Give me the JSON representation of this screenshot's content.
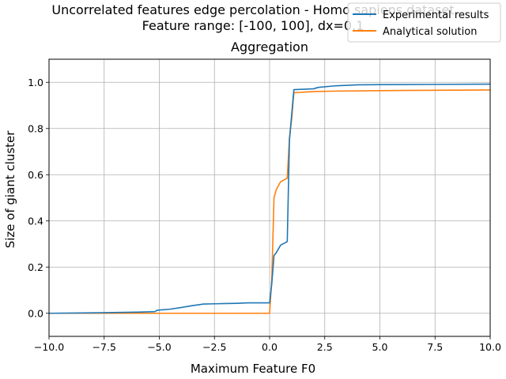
{
  "chart_data": {
    "type": "line",
    "title_line1": "Uncorrelated features edge percolation - Homo sapiens dataset",
    "title_line2": "Feature range: [-100, 100], dx=0.1",
    "subtitle": "Aggregation",
    "xlabel": "Maximum Feature F0",
    "ylabel": "Size of giant cluster",
    "xlim": [
      -10,
      10
    ],
    "ylim": [
      -0.1,
      1.1
    ],
    "xticks": [
      -10,
      -7.5,
      -5,
      -2.5,
      0,
      2.5,
      5,
      7.5,
      10
    ],
    "xtick_labels": [
      "−10.0",
      "−7.5",
      "−5.0",
      "−2.5",
      "0.0",
      "2.5",
      "5.0",
      "7.5",
      "10.0"
    ],
    "yticks": [
      0,
      0.2,
      0.4,
      0.6,
      0.8,
      1.0
    ],
    "ytick_labels": [
      "0.0",
      "0.2",
      "0.4",
      "0.6",
      "0.8",
      "1.0"
    ],
    "grid": true,
    "legend_position": "top-right",
    "series": [
      {
        "name": "Experimental results",
        "color": "#1f77b4",
        "x": [
          -10,
          -8,
          -6,
          -5.2,
          -5.1,
          -4.5,
          -4.0,
          -3.5,
          -3.0,
          -2.5,
          -2.0,
          -1.5,
          -1.0,
          -0.5,
          0.0,
          0.1,
          0.2,
          0.3,
          0.5,
          0.8,
          0.9,
          1.0,
          1.1,
          1.5,
          2.0,
          2.2,
          3.0,
          4.0,
          5.0,
          7.5,
          10.0
        ],
        "y": [
          0.0,
          0.002,
          0.005,
          0.007,
          0.013,
          0.018,
          0.025,
          0.033,
          0.04,
          0.041,
          0.042,
          0.043,
          0.045,
          0.045,
          0.045,
          0.13,
          0.25,
          0.262,
          0.295,
          0.31,
          0.75,
          0.86,
          0.968,
          0.97,
          0.972,
          0.978,
          0.985,
          0.989,
          0.99,
          0.991,
          0.992
        ]
      },
      {
        "name": "Analytical solution",
        "color": "#ff7f0e",
        "x": [
          -10,
          -5,
          0.0,
          0.1,
          0.2,
          0.3,
          0.5,
          0.7,
          0.8,
          0.9,
          1.0,
          1.1,
          1.5,
          2.0,
          3.0,
          5.0,
          10.0
        ],
        "y": [
          0.0,
          0.0,
          0.0,
          0.15,
          0.5,
          0.535,
          0.57,
          0.58,
          0.585,
          0.76,
          0.84,
          0.955,
          0.957,
          0.96,
          0.962,
          0.964,
          0.967
        ]
      }
    ]
  }
}
